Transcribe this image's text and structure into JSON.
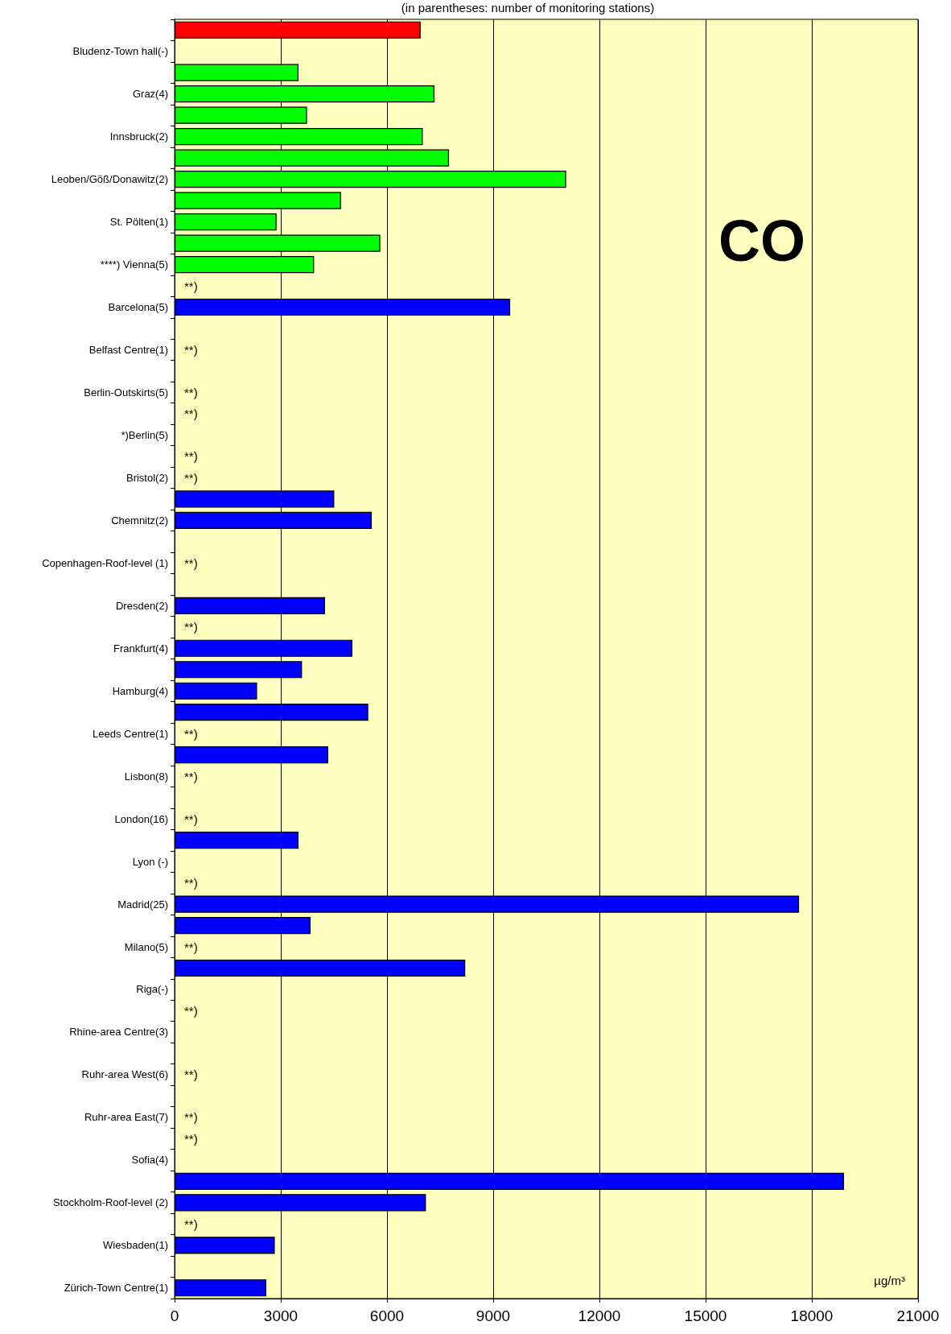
{
  "chart_data": {
    "type": "bar",
    "orientation": "horizontal",
    "subtitle": "(in parentheses: number of monitoring stations)",
    "xlabel": "µg/m³",
    "annotations": [
      "CO"
    ],
    "categories": [
      null,
      "Bludenz-Town hall(-)",
      null,
      "Graz(4)",
      null,
      "Innsbruck(2)",
      null,
      "Leoben/Göß/Donawitz(2)",
      null,
      "St. Pölten(1)",
      null,
      "****) Vienna(5)",
      null,
      "Barcelona(5)",
      null,
      "Belfast Centre(1)",
      null,
      "Berlin-Outskirts(5)",
      null,
      "*)Berlin(5)",
      null,
      "Bristol(2)",
      null,
      "Chemnitz(2)",
      null,
      "Copenhagen-Roof-level (1)",
      null,
      "Dresden(2)",
      null,
      "Frankfurt(4)",
      null,
      "Hamburg(4)",
      null,
      "Leeds Centre(1)",
      null,
      "Lisbon(8)",
      null,
      "London(16)",
      null,
      "Lyon (-)",
      null,
      "Madrid(25)",
      null,
      "Milano(5)",
      null,
      "Riga(-)",
      null,
      "Rhine-area Centre(3)",
      null,
      "Ruhr-area West(6)",
      null,
      "Ruhr-area East(7)",
      null,
      "Sofia(4)",
      null,
      "Stockholm-Roof-level (2)",
      null,
      "Wiesbaden(1)",
      null,
      "Zürich-Town Centre(1)"
    ],
    "values": [
      6950,
      null,
      3500,
      7340,
      3740,
      7010,
      7750,
      11060,
      4700,
      2880,
      5810,
      3940,
      null,
      9480,
      null,
      null,
      null,
      null,
      null,
      null,
      null,
      null,
      4510,
      5570,
      null,
      null,
      null,
      4250,
      null,
      5020,
      3600,
      2330,
      5470,
      null,
      4340,
      null,
      null,
      null,
      3500,
      null,
      null,
      17640,
      3840,
      null,
      8210,
      null,
      null,
      null,
      null,
      null,
      null,
      null,
      null,
      null,
      18910,
      7100,
      null,
      2830,
      null,
      2590
    ],
    "value_labels": [
      null,
      null,
      null,
      null,
      null,
      null,
      null,
      null,
      null,
      null,
      null,
      null,
      "**)",
      null,
      null,
      "**)",
      null,
      "**)",
      "**)",
      null,
      "**)",
      "**)",
      null,
      null,
      null,
      "**)",
      null,
      null,
      "**)",
      null,
      null,
      null,
      null,
      "**)",
      null,
      "**)",
      null,
      "**)",
      null,
      null,
      "**)",
      null,
      null,
      "**)",
      null,
      null,
      "**)",
      null,
      null,
      "**)",
      null,
      "**)",
      "**)",
      null,
      null,
      null,
      "**)",
      null,
      null,
      null
    ],
    "colors": [
      "#ff0000",
      "#0000ff",
      "#00ff00",
      "#00ff00",
      "#00ff00",
      "#00ff00",
      "#00ff00",
      "#00ff00",
      "#00ff00",
      "#00ff00",
      "#00ff00",
      "#00ff00",
      "#0000ff",
      "#0000ff",
      "#0000ff",
      "#0000ff",
      "#0000ff",
      "#0000ff",
      "#0000ff",
      "#0000ff",
      "#0000ff",
      "#0000ff",
      "#0000ff",
      "#0000ff",
      "#0000ff",
      "#0000ff",
      "#0000ff",
      "#0000ff",
      "#0000ff",
      "#0000ff",
      "#0000ff",
      "#0000ff",
      "#0000ff",
      "#0000ff",
      "#0000ff",
      "#0000ff",
      "#0000ff",
      "#0000ff",
      "#0000ff",
      "#0000ff",
      "#0000ff",
      "#0000ff",
      "#0000ff",
      "#0000ff",
      "#0000ff",
      "#0000ff",
      "#0000ff",
      "#0000ff",
      "#0000ff",
      "#0000ff",
      "#0000ff",
      "#0000ff",
      "#0000ff",
      "#0000ff",
      "#0000ff",
      "#0000ff",
      "#0000ff",
      "#0000ff",
      "#0000ff",
      "#0000ff"
    ],
    "xlim": [
      0,
      21000
    ],
    "xticks": [
      0,
      3000,
      6000,
      9000,
      12000,
      15000,
      18000,
      21000
    ],
    "grid": "x"
  }
}
